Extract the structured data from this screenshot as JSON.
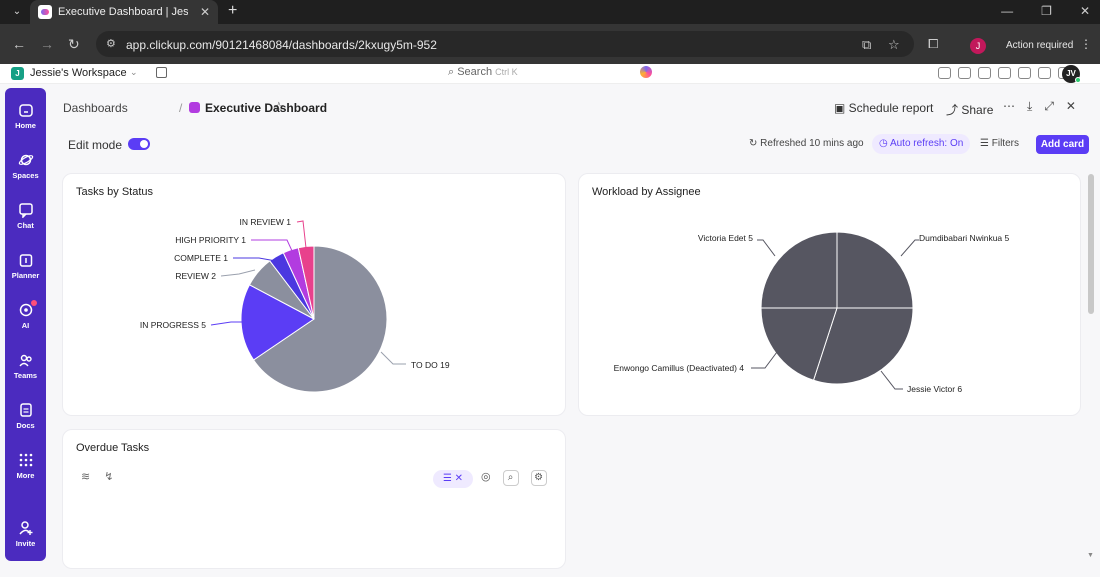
{
  "browser": {
    "tab_title": "Executive Dashboard | Jessie's V",
    "url": "app.clickup.com/90121468084/dashboards/2kxugy5m-952",
    "profile_initial": "J",
    "action_required": "Action required"
  },
  "header": {
    "workspace_initial": "J",
    "workspace_name": "Jessie's Workspace",
    "search_label": "Search",
    "search_shortcut": "Ctrl K",
    "avatar_initials": "JV"
  },
  "sidebar": {
    "items": [
      {
        "label": "Home",
        "icon": "home-icon"
      },
      {
        "label": "Spaces",
        "icon": "planet-icon"
      },
      {
        "label": "Chat",
        "icon": "chat-icon"
      },
      {
        "label": "Planner",
        "icon": "calendar-icon"
      },
      {
        "label": "AI",
        "icon": "ai-brain-icon"
      },
      {
        "label": "Teams",
        "icon": "teams-icon"
      },
      {
        "label": "Docs",
        "icon": "doc-icon"
      },
      {
        "label": "More",
        "icon": "grid-icon"
      },
      {
        "label": "Invite",
        "icon": "add-user-icon"
      }
    ]
  },
  "dashboard": {
    "breadcrumb_root": "Dashboards",
    "breadcrumb_sep": "/",
    "title": "Executive Dashboard",
    "schedule_report": "Schedule report",
    "share": "Share",
    "edit_mode_label": "Edit mode",
    "edit_mode_on": true,
    "refreshed": "Refreshed 10 mins ago",
    "auto_refresh": "Auto refresh: On",
    "filters": "Filters",
    "add_card": "Add card"
  },
  "cards": {
    "status_title": "Tasks by Status",
    "workload_title": "Workload by Assignee",
    "overdue_title": "Overdue Tasks"
  },
  "chart_data": [
    {
      "type": "pie",
      "title": "Tasks by Status",
      "slices": [
        {
          "label": "TO DO 19",
          "value": 19,
          "color": "#8b8f9e"
        },
        {
          "label": "IN PROGRESS 5",
          "value": 5,
          "color": "#5b3df5"
        },
        {
          "label": "REVIEW 2",
          "value": 2,
          "color": "#8b8f9e"
        },
        {
          "label": "COMPLETE 1",
          "value": 1,
          "color": "#4b38e0"
        },
        {
          "label": "HIGH PRIORITY 1",
          "value": 1,
          "color": "#b23ce0"
        },
        {
          "label": "IN REVIEW 1",
          "value": 1,
          "color": "#e8418c"
        }
      ]
    },
    {
      "type": "pie",
      "title": "Workload by Assignee",
      "slices": [
        {
          "label": "Dumdibabari Nwinkua 5",
          "value": 5,
          "color": "#565661"
        },
        {
          "label": "Jessie Victor 6",
          "value": 6,
          "color": "#565661"
        },
        {
          "label": "Enwongo Camillus (Deactivated) 4",
          "value": 4,
          "color": "#565661"
        },
        {
          "label": "Victoria Edet 5",
          "value": 5,
          "color": "#565661"
        }
      ]
    }
  ]
}
